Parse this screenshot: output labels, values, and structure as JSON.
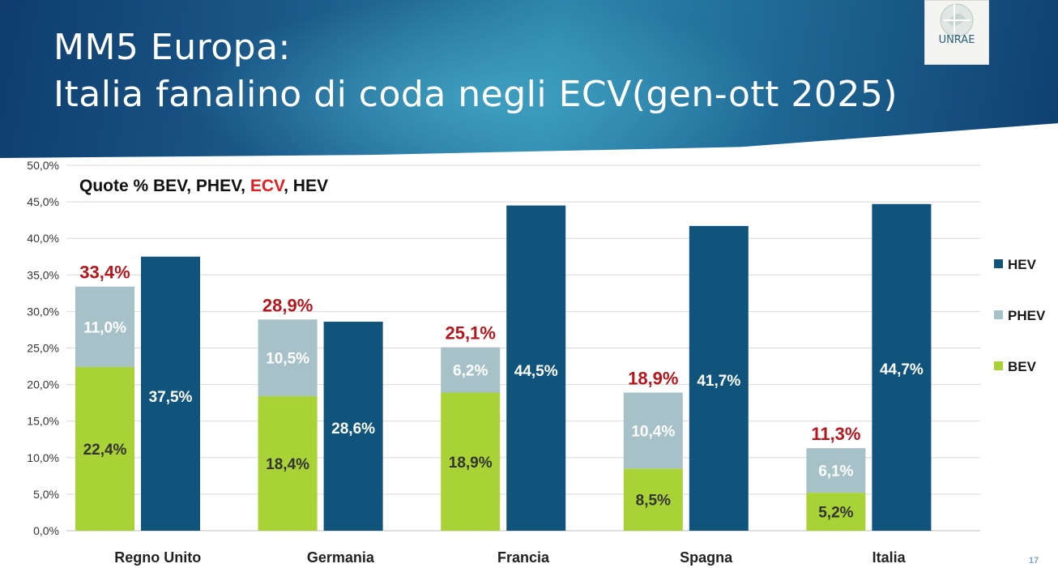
{
  "slide": {
    "title_line1": "MM5 Europa:",
    "title_line2": "Italia fanalino di coda negli ECV(gen-ott 2025)",
    "page_number": "17",
    "logo_text": "UNRAE"
  },
  "colors": {
    "bev": "#a8d235",
    "phev": "#a7c1c9",
    "hev": "#10547c",
    "ecv_label": "#b8161d",
    "grid": "#d9d9d9"
  },
  "chart_data": {
    "type": "bar",
    "title_parts": [
      "Quote % BEV, PHEV, ",
      "ECV",
      ", HEV"
    ],
    "categories": [
      "Regno Unito",
      "Germania",
      "Francia",
      "Spagna",
      "Italia"
    ],
    "series": [
      {
        "name": "BEV",
        "stack": "ECV",
        "values": [
          22.4,
          18.4,
          18.9,
          8.5,
          5.2
        ],
        "labels": [
          "22,4%",
          "18,4%",
          "18,9%",
          "8,5%",
          "5,2%"
        ]
      },
      {
        "name": "PHEV",
        "stack": "ECV",
        "values": [
          11.0,
          10.5,
          6.2,
          10.4,
          6.1
        ],
        "labels": [
          "11,0%",
          "10,5%",
          "6,2%",
          "10,4%",
          "6,1%"
        ]
      },
      {
        "name": "HEV",
        "stack": "HEV",
        "values": [
          37.5,
          28.6,
          44.5,
          41.7,
          44.7
        ],
        "labels": [
          "37,5%",
          "28,6%",
          "44,5%",
          "41,7%",
          "44,7%"
        ]
      }
    ],
    "ecv_totals": [
      33.4,
      28.9,
      25.1,
      18.9,
      11.3
    ],
    "ecv_total_labels": [
      "33,4%",
      "28,9%",
      "25,1%",
      "18,9%",
      "11,3%"
    ],
    "yticks": [
      "0,0%",
      "5,0%",
      "10,0%",
      "15,0%",
      "20,0%",
      "25,0%",
      "30,0%",
      "35,0%",
      "40,0%",
      "45,0%",
      "50,0%"
    ],
    "ylim": [
      0,
      50
    ],
    "legend": [
      "HEV",
      "PHEV",
      "BEV"
    ],
    "legend_position": "right",
    "grid": true
  }
}
